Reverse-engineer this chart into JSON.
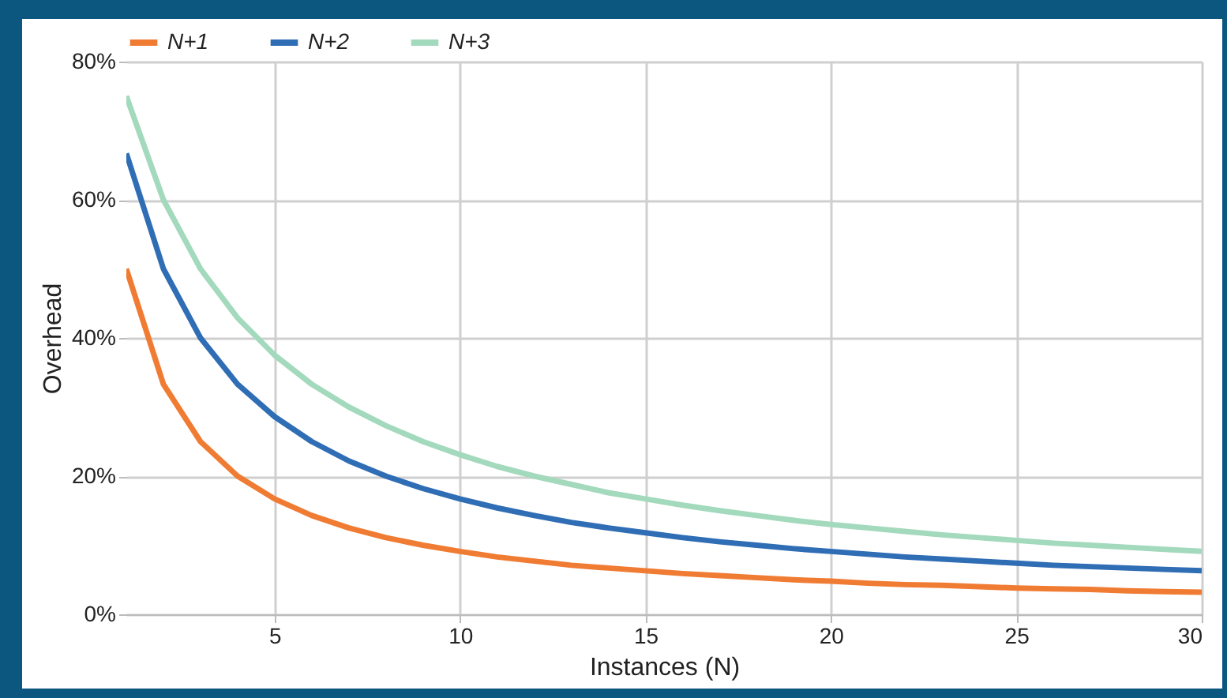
{
  "chart_data": {
    "type": "line",
    "xlabel": "Instances (N)",
    "ylabel": "Overhead",
    "x": [
      1,
      2,
      3,
      4,
      5,
      6,
      7,
      8,
      9,
      10,
      11,
      12,
      13,
      14,
      15,
      16,
      17,
      18,
      19,
      20,
      21,
      22,
      23,
      24,
      25,
      26,
      27,
      28,
      29,
      30
    ],
    "xlim": [
      1,
      30
    ],
    "xticks": [
      5,
      10,
      15,
      20,
      25,
      30
    ],
    "ylim": [
      0,
      80
    ],
    "yticks": [
      {
        "value": 0,
        "label": "0%"
      },
      {
        "value": 20,
        "label": "20%"
      },
      {
        "value": 40,
        "label": "40%"
      },
      {
        "value": 60,
        "label": "60%"
      },
      {
        "value": 80,
        "label": "80%"
      }
    ],
    "grid": true,
    "legend": "top",
    "marker": "none",
    "line_style": "solid",
    "series": [
      {
        "name": "N+1",
        "color": "#f07b32",
        "values": [
          50,
          33.3,
          25,
          20,
          16.7,
          14.3,
          12.5,
          11.1,
          10,
          9.1,
          8.3,
          7.7,
          7.1,
          6.7,
          6.3,
          5.9,
          5.6,
          5.3,
          5,
          4.8,
          4.5,
          4.3,
          4.2,
          4,
          3.8,
          3.7,
          3.6,
          3.4,
          3.3,
          3.2
        ]
      },
      {
        "name": "N+2",
        "color": "#2f6db5",
        "values": [
          66.7,
          50,
          40,
          33.3,
          28.6,
          25,
          22.2,
          20,
          18.2,
          16.7,
          15.4,
          14.3,
          13.3,
          12.5,
          11.8,
          11.1,
          10.5,
          10,
          9.5,
          9.1,
          8.7,
          8.3,
          8,
          7.7,
          7.4,
          7.1,
          6.9,
          6.7,
          6.5,
          6.3
        ]
      },
      {
        "name": "N+3",
        "color": "#a3d9bc",
        "values": [
          75,
          60,
          50,
          42.9,
          37.5,
          33.3,
          30,
          27.3,
          25,
          23.1,
          21.4,
          20,
          18.8,
          17.6,
          16.7,
          15.8,
          15,
          14.3,
          13.6,
          13,
          12.5,
          12,
          11.5,
          11.1,
          10.7,
          10.3,
          10,
          9.7,
          9.4,
          9.1
        ]
      }
    ]
  }
}
